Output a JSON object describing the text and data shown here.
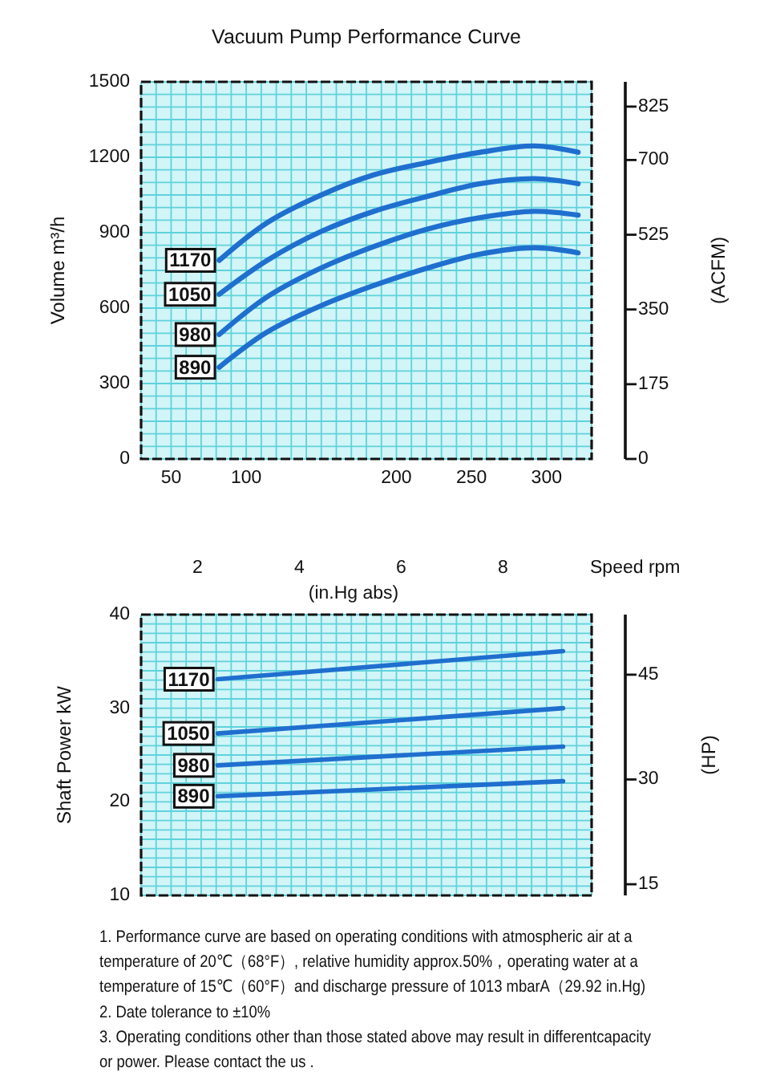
{
  "chart_data": [
    {
      "type": "line",
      "title": "Vacuum Pump Performance Curve",
      "ylabel": "Volume m³/h",
      "y2label": "(ACFM)",
      "x2label": "(in.Hg abs)",
      "legend_title": "Speed rpm",
      "xlim": [
        30,
        330
      ],
      "xticks": [
        {
          "value": 30,
          "label": null
        },
        {
          "value": 40,
          "label": null
        },
        50,
        {
          "value": 60,
          "label": null
        },
        {
          "value": 70,
          "label": null
        },
        {
          "value": 80,
          "label": null
        },
        {
          "value": 90,
          "label": null
        },
        100,
        {
          "value": 110,
          "label": null
        },
        {
          "value": 120,
          "label": null
        },
        {
          "value": 130,
          "label": null
        },
        {
          "value": 140,
          "label": null
        },
        {
          "value": 150,
          "label": null
        },
        {
          "value": 160,
          "label": null
        },
        {
          "value": 170,
          "label": null
        },
        {
          "value": 180,
          "label": null
        },
        {
          "value": 190,
          "label": null
        },
        200,
        {
          "value": 210,
          "label": null
        },
        {
          "value": 220,
          "label": null
        },
        {
          "value": 230,
          "label": null
        },
        {
          "value": 240,
          "label": null
        },
        250,
        {
          "value": 260,
          "label": null
        },
        {
          "value": 270,
          "label": null
        },
        {
          "value": 280,
          "label": null
        },
        {
          "value": 290,
          "label": null
        },
        300,
        {
          "value": 310,
          "label": null
        },
        {
          "value": 320,
          "label": null
        },
        {
          "value": 330,
          "label": null
        }
      ],
      "ylim": [
        0,
        1500
      ],
      "yticks": [
        0,
        {
          "value": 50,
          "label": null
        },
        {
          "value": 100,
          "label": null
        },
        {
          "value": 150,
          "label": null
        },
        {
          "value": 200,
          "label": null
        },
        {
          "value": 250,
          "label": null
        },
        300,
        {
          "value": 350,
          "label": null
        },
        {
          "value": 400,
          "label": null
        },
        {
          "value": 450,
          "label": null
        },
        {
          "value": 500,
          "label": null
        },
        {
          "value": 550,
          "label": null
        },
        600,
        {
          "value": 650,
          "label": null
        },
        {
          "value": 700,
          "label": null
        },
        {
          "value": 750,
          "label": null
        },
        {
          "value": 800,
          "label": null
        },
        {
          "value": 850,
          "label": null
        },
        900,
        {
          "value": 950,
          "label": null
        },
        {
          "value": 1000,
          "label": null
        },
        {
          "value": 1050,
          "label": null
        },
        {
          "value": 1100,
          "label": null
        },
        {
          "value": 1150,
          "label": null
        },
        1200,
        {
          "value": 1250,
          "label": null
        },
        {
          "value": 1300,
          "label": null
        },
        {
          "value": 1350,
          "label": null
        },
        {
          "value": 1400,
          "label": null
        },
        {
          "value": 1450,
          "label": null
        },
        1500
      ],
      "y2lim": [
        0,
        883
      ],
      "y2ticks": [
        0,
        175,
        350,
        525,
        700,
        825
      ],
      "x2lim": [
        0.89,
        9.74
      ],
      "x2ticks": [
        2,
        4,
        6,
        8
      ],
      "grid": true,
      "x": [
        82,
        114,
        150,
        185,
        221,
        256,
        292,
        321
      ],
      "series": [
        {
          "name": "1170",
          "color": "#1f6fcf",
          "values": [
            790,
            940,
            1050,
            1130,
            1180,
            1220,
            1245,
            1220
          ]
        },
        {
          "name": "1050",
          "color": "#1f6fcf",
          "values": [
            655,
            790,
            905,
            985,
            1045,
            1095,
            1115,
            1095
          ]
        },
        {
          "name": "980",
          "color": "#1f6fcf",
          "values": [
            495,
            645,
            760,
            845,
            915,
            960,
            985,
            970
          ]
        },
        {
          "name": "890",
          "color": "#1f6fcf",
          "values": [
            365,
            505,
            610,
            690,
            760,
            815,
            840,
            820
          ]
        }
      ]
    },
    {
      "type": "line",
      "ylabel": "Shaft Power kW",
      "y2label": "(HP)",
      "tick_labels": "y",
      "xlim": [
        30,
        330
      ],
      "xticks": [
        {
          "value": 30,
          "label": null
        },
        {
          "value": 40,
          "label": null
        },
        50,
        {
          "value": 60,
          "label": null
        },
        {
          "value": 70,
          "label": null
        },
        {
          "value": 80,
          "label": null
        },
        {
          "value": 90,
          "label": null
        },
        100,
        {
          "value": 110,
          "label": null
        },
        {
          "value": 120,
          "label": null
        },
        {
          "value": 130,
          "label": null
        },
        {
          "value": 140,
          "label": null
        },
        {
          "value": 150,
          "label": null
        },
        {
          "value": 160,
          "label": null
        },
        {
          "value": 170,
          "label": null
        },
        {
          "value": 180,
          "label": null
        },
        {
          "value": 190,
          "label": null
        },
        200,
        {
          "value": 210,
          "label": null
        },
        {
          "value": 220,
          "label": null
        },
        {
          "value": 230,
          "label": null
        },
        {
          "value": 240,
          "label": null
        },
        250,
        {
          "value": 260,
          "label": null
        },
        {
          "value": 270,
          "label": null
        },
        {
          "value": 280,
          "label": null
        },
        {
          "value": 290,
          "label": null
        },
        300,
        {
          "value": 310,
          "label": null
        },
        {
          "value": 320,
          "label": null
        },
        {
          "value": 330,
          "label": null
        }
      ],
      "ylim": [
        10,
        40
      ],
      "yticks": [
        10,
        {
          "value": 11,
          "label": null
        },
        {
          "value": 12,
          "label": null
        },
        {
          "value": 13,
          "label": null
        },
        {
          "value": 14,
          "label": null
        },
        {
          "value": 15,
          "label": null
        },
        {
          "value": 16,
          "label": null
        },
        {
          "value": 17,
          "label": null
        },
        {
          "value": 18,
          "label": null
        },
        {
          "value": 19,
          "label": null
        },
        20,
        {
          "value": 21,
          "label": null
        },
        {
          "value": 22,
          "label": null
        },
        {
          "value": 23,
          "label": null
        },
        {
          "value": 24,
          "label": null
        },
        {
          "value": 25,
          "label": null
        },
        {
          "value": 26,
          "label": null
        },
        {
          "value": 27,
          "label": null
        },
        {
          "value": 28,
          "label": null
        },
        {
          "value": 29,
          "label": null
        },
        30,
        {
          "value": 31,
          "label": null
        },
        {
          "value": 32,
          "label": null
        },
        {
          "value": 33,
          "label": null
        },
        {
          "value": 34,
          "label": null
        },
        {
          "value": 35,
          "label": null
        },
        {
          "value": 36,
          "label": null
        },
        {
          "value": 37,
          "label": null
        },
        {
          "value": 38,
          "label": null
        },
        {
          "value": 39,
          "label": null
        },
        40
      ],
      "y2lim": [
        13.4,
        53.6
      ],
      "y2ticks": [
        15,
        30,
        45
      ],
      "grid": true,
      "x": [
        81,
        311
      ],
      "series": [
        {
          "name": "1170",
          "color": "#1f6fcf",
          "values": [
            33.1,
            36.1
          ]
        },
        {
          "name": "1050",
          "color": "#1f6fcf",
          "values": [
            27.3,
            30.0
          ]
        },
        {
          "name": "980",
          "color": "#1f6fcf",
          "values": [
            23.9,
            25.9
          ]
        },
        {
          "name": "890",
          "color": "#1f6fcf",
          "values": [
            20.6,
            22.2
          ]
        }
      ],
      "annotations": [
        "1. Performance curve are based on operating conditions with atmospheric air at a temperature of 20℃（68°F）, relative humidity approx.50%，operating water at a temperature of 15℃（60°F）and discharge pressure of 1013 mbarA（29.92 in.Hg)",
        "2. Date tolerance to ±10%",
        "3. Operating conditions other than those stated above may result in differentcapacity or power. Please contact the us ."
      ]
    }
  ]
}
